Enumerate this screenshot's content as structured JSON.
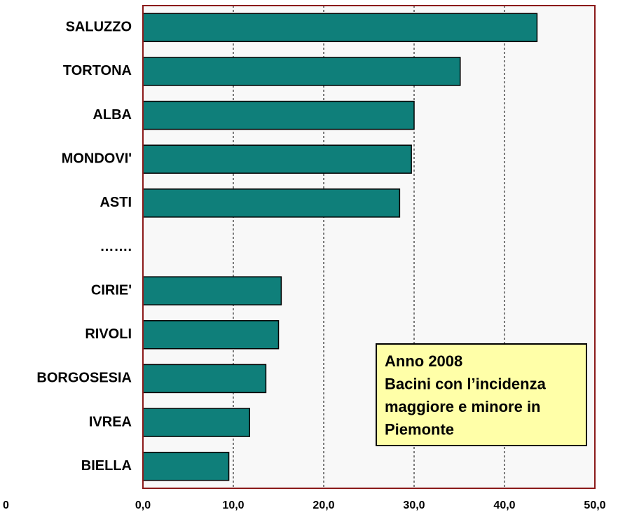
{
  "chart_data": {
    "type": "barh",
    "categories": [
      "SALUZZO",
      "TORTONA",
      "ALBA",
      "MONDOVI'",
      "ASTI",
      "…….",
      "CIRIE'",
      "RIVOLI",
      "BORGOSESIA",
      "IVREA",
      "BIELLA"
    ],
    "values": [
      43.6,
      35.1,
      30.0,
      29.7,
      28.4,
      null,
      15.3,
      15.0,
      13.6,
      11.8,
      9.5
    ],
    "color": "#0f7f7a",
    "xlim": [
      0,
      50
    ],
    "xticks": [
      {
        "value": 0,
        "label": "0,0"
      },
      {
        "value": 10,
        "label": "10,0"
      },
      {
        "value": 20,
        "label": "20,0"
      },
      {
        "value": 30,
        "label": "30,0"
      },
      {
        "value": 40,
        "label": "40,0"
      },
      {
        "value": 50,
        "label": "50,0"
      }
    ],
    "grid": true,
    "corner_label": "0",
    "annotation": [
      "Anno 2008",
      "Bacini con l’incidenza",
      "maggiore e minore in",
      "Piemonte"
    ]
  }
}
